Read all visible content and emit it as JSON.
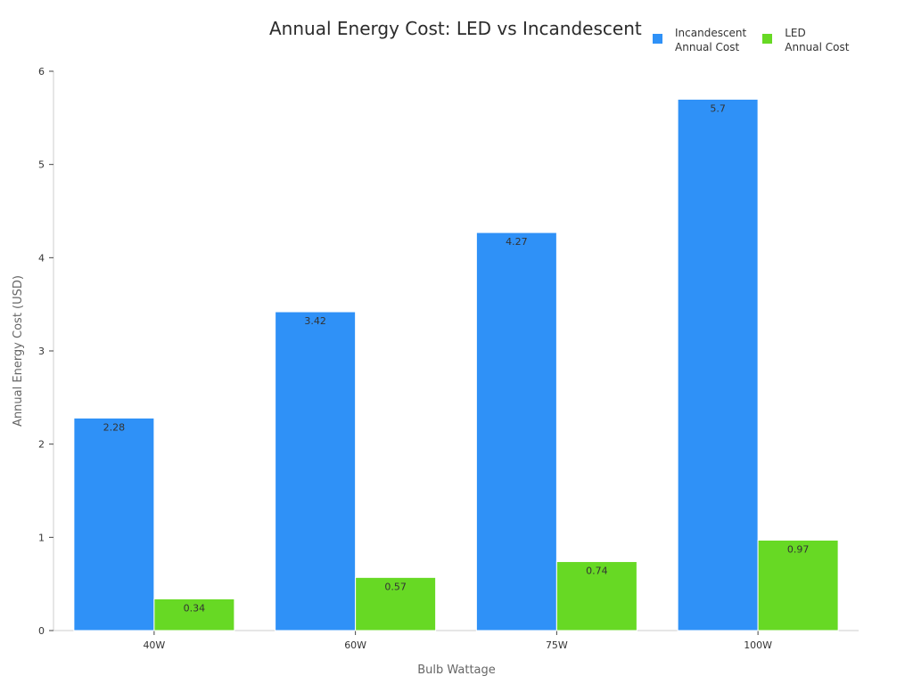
{
  "chart_data": {
    "type": "bar",
    "title": "Annual Energy Cost: LED vs Incandescent",
    "xlabel": "Bulb Wattage",
    "ylabel": "Annual Energy Cost (USD)",
    "categories": [
      "40W",
      "60W",
      "75W",
      "100W"
    ],
    "ylim": [
      0,
      6
    ],
    "yticks": [
      0,
      1,
      2,
      3,
      4,
      5,
      6
    ],
    "grid": false,
    "legend_position": "top-right",
    "series": [
      {
        "name": "Incandescent\nAnnual Cost",
        "color": "#2f91f7",
        "values": [
          2.28,
          3.42,
          4.27,
          5.7
        ]
      },
      {
        "name": "LED\nAnnual Cost",
        "color": "#67d924",
        "values": [
          0.34,
          0.57,
          0.74,
          0.97
        ]
      }
    ]
  }
}
